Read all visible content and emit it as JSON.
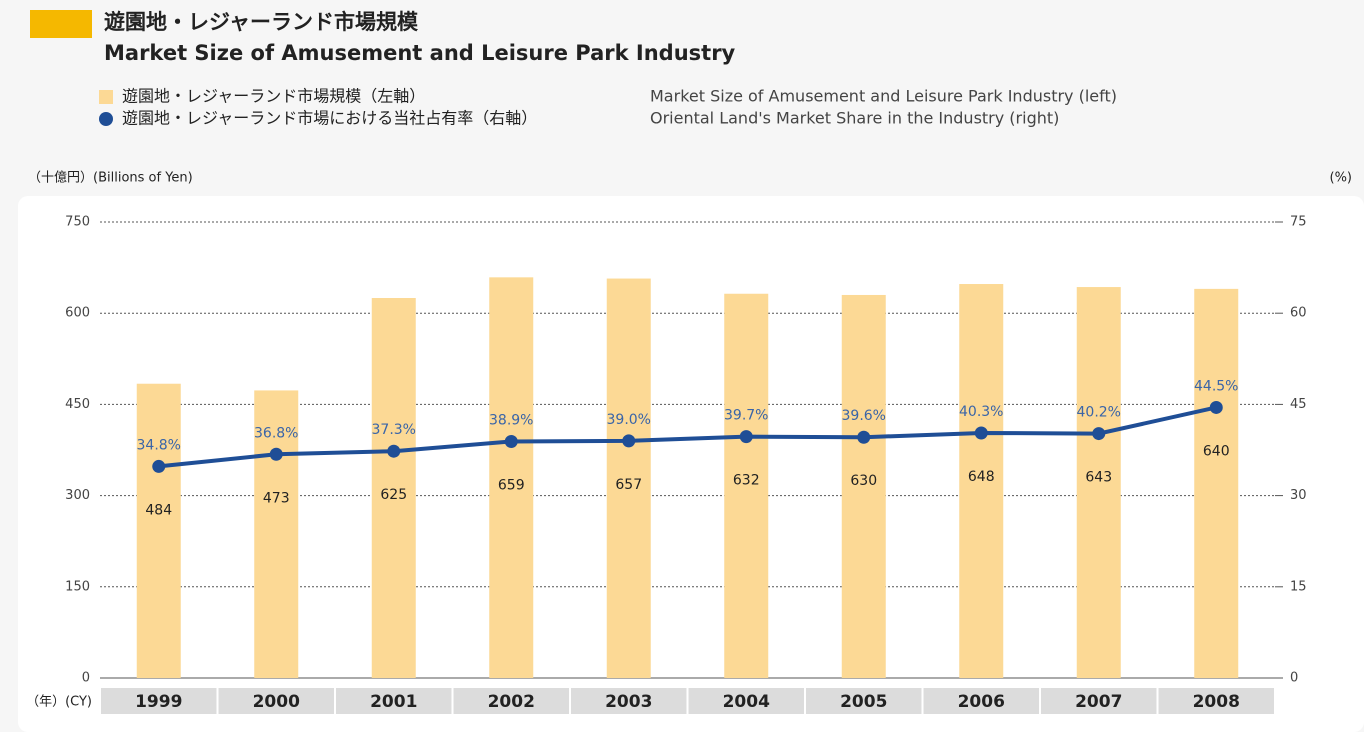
{
  "chart_data": {
    "type": "bar_line",
    "title": "遊園地・レジャーランド市場規模",
    "subtitle": "Market Size of Amusement and Leisure Park Industry",
    "y_label": "（十億円）(Billions of Yen)",
    "y2_label": "(%)",
    "x_label": "（年）(CY)",
    "categories": [
      "1999",
      "2000",
      "2001",
      "2002",
      "2003",
      "2004",
      "2005",
      "2006",
      "2007",
      "2008"
    ],
    "series": [
      {
        "name": "遊園地・レジャーランド市場規模（左軸）",
        "name_en": "Market Size of Amusement and Leisure Park Industry (left)",
        "type": "bar",
        "color": "#fcd995",
        "values": [
          484,
          473,
          625,
          659,
          657,
          632,
          630,
          648,
          643,
          640
        ]
      },
      {
        "name": "遊園地・レジャーランド市場における当社占有率（右軸）",
        "name_en": "Oriental Land's Market Share in the Industry (right)",
        "type": "line",
        "axis": "y2",
        "color": "#1f4e96",
        "values": [
          34.8,
          36.8,
          37.3,
          38.9,
          39.0,
          39.7,
          39.6,
          40.3,
          40.2,
          44.5
        ],
        "value_labels": [
          "34.8%",
          "36.8%",
          "37.3%",
          "38.9%",
          "39.0%",
          "39.7%",
          "39.6%",
          "40.3%",
          "40.2%",
          "44.5%"
        ]
      }
    ],
    "ylim": [
      0,
      750
    ],
    "yticks": [
      0,
      150,
      300,
      450,
      600,
      750
    ],
    "y2lim": [
      0,
      75
    ],
    "y2ticks": [
      0,
      15,
      30,
      45,
      60,
      75
    ],
    "grid": true
  }
}
